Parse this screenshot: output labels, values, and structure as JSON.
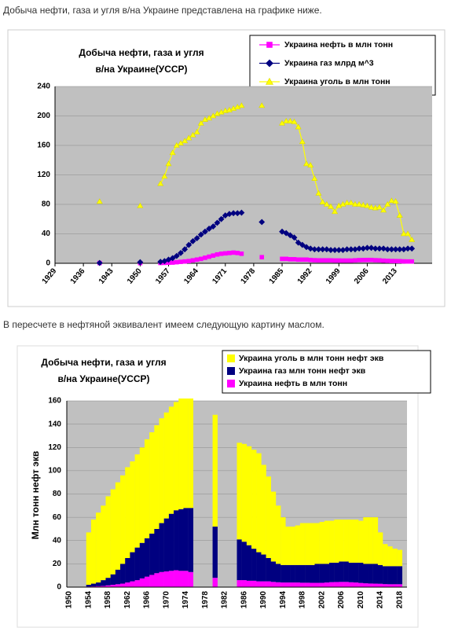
{
  "text_1": "Добыча нефти, газа и угля в/на Украине представлена на графике ниже.",
  "text_2": "В пересчете в нефтяной эквивалент имеем следующую картину маслом.",
  "chart_data": [
    {
      "type": "line",
      "title": [
        "Добыча нефти, газа и угля",
        "в/на  Украине(УССР)"
      ],
      "x": [
        1940,
        1950,
        1955,
        1956,
        1957,
        1958,
        1959,
        1960,
        1961,
        1962,
        1963,
        1964,
        1965,
        1966,
        1967,
        1968,
        1969,
        1970,
        1971,
        1972,
        1973,
        1974,
        1975,
        1980,
        1985,
        1986,
        1987,
        1988,
        1989,
        1990,
        1991,
        1992,
        1993,
        1994,
        1995,
        1996,
        1997,
        1998,
        1999,
        2000,
        2001,
        2002,
        2003,
        2004,
        2005,
        2006,
        2007,
        2008,
        2009,
        2010,
        2011,
        2012,
        2013,
        2014,
        2015,
        2016,
        2017
      ],
      "xlim": [
        1929,
        2022
      ],
      "xticks": [
        1929,
        1936,
        1943,
        1950,
        1957,
        1964,
        1971,
        1978,
        1985,
        1992,
        1999,
        2006,
        2013
      ],
      "ylim": [
        0,
        240
      ],
      "yticks": [
        0,
        40,
        80,
        120,
        160,
        200,
        240
      ],
      "grid": true,
      "legend": "top-right",
      "series": [
        {
          "name": "Украина нефть в млн тонн",
          "color": "#ff00ff",
          "marker": "square",
          "values": [
            0.4,
            0.3,
            0.5,
            0.6,
            0.8,
            1,
            1.5,
            2,
            2.5,
            3,
            4,
            5,
            6,
            7.5,
            9,
            10.5,
            12,
            13,
            13.5,
            14,
            14.5,
            14,
            13,
            8.3,
            6,
            6,
            5.5,
            5.5,
            5,
            5,
            5,
            4.5,
            4.2,
            4,
            4,
            4,
            4,
            3.8,
            3.8,
            3.7,
            3.7,
            3.7,
            4,
            4.3,
            4.4,
            4.5,
            4.5,
            4.2,
            4,
            3.6,
            3.3,
            3.1,
            3,
            2.9,
            2.6,
            2.5,
            2.5
          ]
        },
        {
          "name": "Украина газ млрд м^3",
          "color": "#000080",
          "marker": "diamond",
          "values": [
            0.5,
            1.5,
            2,
            3,
            5,
            7,
            10,
            14,
            19,
            25,
            30,
            34,
            39,
            43,
            47,
            50,
            55,
            60,
            65,
            67,
            68,
            68,
            68.7,
            56,
            43,
            41,
            38,
            35,
            28,
            25,
            22,
            20,
            19,
            19,
            19,
            19,
            18,
            18,
            18,
            18,
            19,
            19,
            19,
            20,
            20,
            21,
            21,
            20,
            20,
            20,
            19,
            19,
            19,
            19,
            19,
            20,
            20
          ]
        },
        {
          "name": "Украина уголь в млн тонн",
          "color": "#ffff00",
          "marker": "triangle",
          "values": [
            83.8,
            78,
            108,
            118,
            135,
            150,
            160,
            163,
            166,
            170,
            174,
            178,
            190,
            195,
            197,
            200,
            203,
            205,
            207,
            208,
            210,
            212,
            214,
            214,
            190,
            193,
            193,
            192,
            185,
            165,
            135,
            133,
            115,
            95,
            83,
            80,
            77,
            70,
            78,
            80,
            82,
            82,
            80,
            80,
            79,
            78,
            76,
            75,
            76,
            72,
            80,
            85,
            84,
            65,
            40,
            40,
            32
          ]
        }
      ]
    },
    {
      "type": "stacked_bar",
      "title": [
        "Добыча нефти, газа и угля",
        "в/на  Украине(УССР)"
      ],
      "ylabel": "Млн тонн нефт экв",
      "categories": [
        "1950",
        null,
        null,
        null,
        "1954",
        null,
        null,
        null,
        "1958",
        null,
        null,
        null,
        "1962",
        null,
        null,
        null,
        "1966",
        null,
        null,
        null,
        "1970",
        null,
        null,
        null,
        "1974",
        null,
        null,
        null,
        "1978",
        null,
        null,
        null,
        "1982",
        null,
        null,
        null,
        "1986",
        null,
        null,
        null,
        "1990",
        null,
        null,
        null,
        "1994",
        null,
        null,
        null,
        "1998",
        null,
        null,
        null,
        "2002",
        null,
        null,
        null,
        "2006",
        null,
        null,
        null,
        "2010",
        null,
        null,
        null,
        "2014",
        null,
        null,
        null,
        "2018",
        null
      ],
      "ylim": [
        0,
        160
      ],
      "yticks": [
        0,
        20,
        40,
        60,
        80,
        100,
        120,
        140,
        160
      ],
      "grid": true,
      "legend": "top-right",
      "series": [
        {
          "name": "Украина нефть в млн тонн",
          "color": "#ff00ff",
          "values": [
            null,
            null,
            null,
            null,
            0.5,
            0.6,
            0.8,
            1,
            1.5,
            2,
            2.5,
            3,
            4,
            5,
            6,
            7.5,
            9,
            10.5,
            12,
            13,
            13.5,
            14,
            14.5,
            14,
            14,
            13,
            null,
            null,
            null,
            null,
            8,
            null,
            null,
            null,
            null,
            6,
            6,
            5.5,
            5.5,
            5,
            5,
            5,
            4.5,
            4.2,
            4,
            4,
            4,
            4,
            3.8,
            3.8,
            3.7,
            3.7,
            3.7,
            4,
            4.3,
            4.4,
            4.5,
            4.5,
            4.2,
            4,
            3.6,
            3.3,
            3.1,
            3,
            2.9,
            2.6,
            2.5,
            2.5,
            2.5,
            null
          ]
        },
        {
          "name": "Украина газ млн тонн нефт экв",
          "color": "#000080",
          "values": [
            null,
            null,
            null,
            null,
            1.5,
            2.4,
            3.2,
            5,
            6.5,
            9,
            12.5,
            17,
            21,
            25,
            28,
            30.5,
            33,
            35.5,
            38,
            42,
            45.5,
            49,
            51.5,
            53,
            54,
            55,
            null,
            null,
            null,
            null,
            44,
            null,
            null,
            null,
            null,
            35,
            33,
            30.5,
            27.5,
            25,
            23,
            20,
            17.5,
            15.8,
            15,
            15,
            15,
            15,
            15.2,
            15.2,
            15.3,
            16.3,
            16.3,
            16,
            16.7,
            16.6,
            17.5,
            17.5,
            16.8,
            17,
            17.4,
            16.7,
            16.9,
            17,
            16.1,
            15.4,
            15.5,
            15.5,
            15.5,
            null
          ]
        },
        {
          "name": "Украина уголь в млн тонн нефт экв",
          "color": "#ffff00",
          "values": [
            null,
            null,
            null,
            null,
            45,
            55,
            60,
            64,
            70,
            73,
            75,
            76,
            78,
            78,
            80,
            82,
            85,
            87,
            89,
            90,
            91,
            92,
            93,
            95,
            94,
            94,
            null,
            null,
            null,
            null,
            96,
            null,
            null,
            null,
            null,
            83,
            84,
            85,
            85,
            85,
            77,
            70,
            60,
            50,
            41,
            33,
            33,
            34,
            36,
            36,
            36,
            35,
            36,
            37,
            36,
            37,
            36,
            36,
            37,
            37,
            36,
            40,
            40,
            40,
            28,
            19,
            17,
            15,
            14,
            null
          ]
        }
      ]
    }
  ]
}
